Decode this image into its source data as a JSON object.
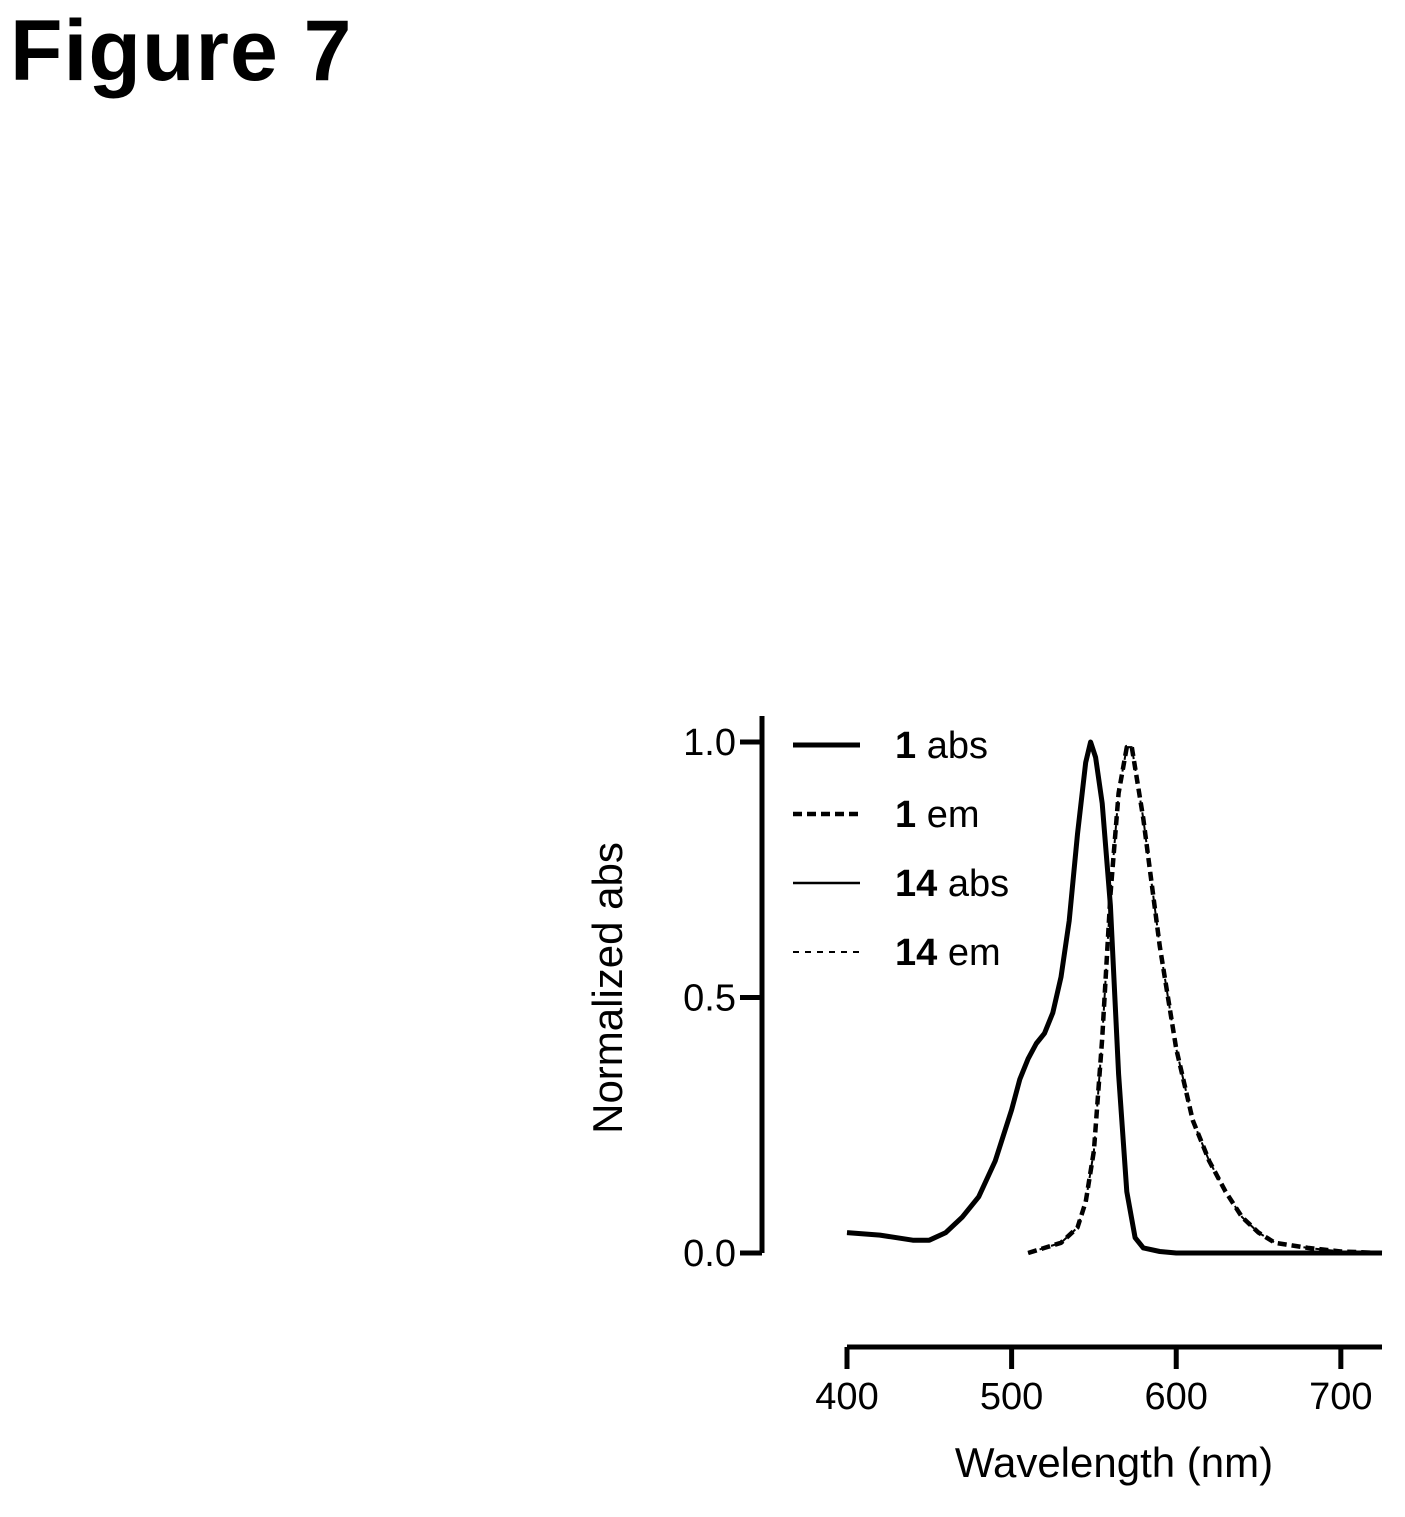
{
  "figure_title": "Figure 7",
  "chart_data": {
    "type": "line",
    "xlabel": "Wavelength (nm)",
    "ylabel": "Normalized abs",
    "xlim": [
      400,
      725
    ],
    "ylim": [
      0,
      1.0
    ],
    "xticks": [
      400,
      500,
      600,
      700
    ],
    "xtick_labels": [
      "400",
      "500",
      "600",
      "700"
    ],
    "yticks": [
      0.0,
      0.5,
      1.0
    ],
    "ytick_labels": [
      "0.0",
      "0.5",
      "1.0"
    ],
    "grid": false,
    "legend_position": "top-left",
    "series": [
      {
        "name": "1 abs",
        "legend_num": "1",
        "legend_suffix": "abs",
        "style": "solid-thick",
        "points": [
          [
            400,
            0.04
          ],
          [
            420,
            0.035
          ],
          [
            440,
            0.025
          ],
          [
            450,
            0.025
          ],
          [
            460,
            0.04
          ],
          [
            470,
            0.07
          ],
          [
            480,
            0.11
          ],
          [
            490,
            0.18
          ],
          [
            500,
            0.28
          ],
          [
            505,
            0.34
          ],
          [
            510,
            0.38
          ],
          [
            515,
            0.41
          ],
          [
            520,
            0.43
          ],
          [
            525,
            0.47
          ],
          [
            530,
            0.54
          ],
          [
            535,
            0.65
          ],
          [
            540,
            0.82
          ],
          [
            545,
            0.96
          ],
          [
            548,
            1.0
          ],
          [
            551,
            0.97
          ],
          [
            555,
            0.88
          ],
          [
            560,
            0.68
          ],
          [
            565,
            0.35
          ],
          [
            570,
            0.12
          ],
          [
            575,
            0.03
          ],
          [
            580,
            0.01
          ],
          [
            590,
            0.003
          ],
          [
            600,
            0.0
          ],
          [
            650,
            0.0
          ],
          [
            700,
            0.0
          ],
          [
            725,
            0.0
          ]
        ]
      },
      {
        "name": "1 em",
        "legend_num": "1",
        "legend_suffix": "em",
        "style": "dashed-thick",
        "points": [
          [
            510,
            0.0
          ],
          [
            520,
            0.01
          ],
          [
            530,
            0.02
          ],
          [
            540,
            0.05
          ],
          [
            545,
            0.1
          ],
          [
            550,
            0.2
          ],
          [
            555,
            0.42
          ],
          [
            560,
            0.7
          ],
          [
            565,
            0.9
          ],
          [
            570,
            0.99
          ],
          [
            573,
            0.99
          ],
          [
            580,
            0.85
          ],
          [
            590,
            0.6
          ],
          [
            600,
            0.4
          ],
          [
            610,
            0.26
          ],
          [
            620,
            0.18
          ],
          [
            630,
            0.12
          ],
          [
            640,
            0.07
          ],
          [
            650,
            0.04
          ],
          [
            660,
            0.02
          ],
          [
            680,
            0.01
          ],
          [
            700,
            0.003
          ],
          [
            725,
            0.0
          ]
        ]
      },
      {
        "name": "14 abs",
        "legend_num": "14",
        "legend_suffix": "abs",
        "style": "solid-thin",
        "points": [
          [
            400,
            0.04
          ],
          [
            420,
            0.035
          ],
          [
            440,
            0.025
          ],
          [
            450,
            0.025
          ],
          [
            460,
            0.04
          ],
          [
            470,
            0.07
          ],
          [
            480,
            0.11
          ],
          [
            490,
            0.18
          ],
          [
            500,
            0.28
          ],
          [
            505,
            0.34
          ],
          [
            510,
            0.38
          ],
          [
            515,
            0.41
          ],
          [
            520,
            0.43
          ],
          [
            525,
            0.47
          ],
          [
            530,
            0.54
          ],
          [
            535,
            0.65
          ],
          [
            540,
            0.82
          ],
          [
            545,
            0.96
          ],
          [
            548,
            1.0
          ],
          [
            551,
            0.97
          ],
          [
            555,
            0.88
          ],
          [
            560,
            0.68
          ],
          [
            565,
            0.35
          ],
          [
            570,
            0.12
          ],
          [
            575,
            0.03
          ],
          [
            580,
            0.01
          ],
          [
            590,
            0.003
          ],
          [
            600,
            0.0
          ],
          [
            650,
            0.0
          ],
          [
            700,
            0.0
          ],
          [
            725,
            0.0
          ]
        ]
      },
      {
        "name": "14 em",
        "legend_num": "14",
        "legend_suffix": "em",
        "style": "dashed-thin",
        "points": [
          [
            510,
            0.0
          ],
          [
            520,
            0.01
          ],
          [
            530,
            0.02
          ],
          [
            540,
            0.05
          ],
          [
            545,
            0.1
          ],
          [
            550,
            0.2
          ],
          [
            555,
            0.42
          ],
          [
            560,
            0.7
          ],
          [
            565,
            0.9
          ],
          [
            570,
            0.99
          ],
          [
            573,
            0.99
          ],
          [
            580,
            0.85
          ],
          [
            590,
            0.6
          ],
          [
            600,
            0.4
          ],
          [
            610,
            0.26
          ],
          [
            620,
            0.18
          ],
          [
            630,
            0.12
          ],
          [
            640,
            0.07
          ],
          [
            650,
            0.04
          ],
          [
            660,
            0.02
          ],
          [
            680,
            0.01
          ],
          [
            700,
            0.003
          ],
          [
            725,
            0.0
          ]
        ]
      }
    ]
  }
}
